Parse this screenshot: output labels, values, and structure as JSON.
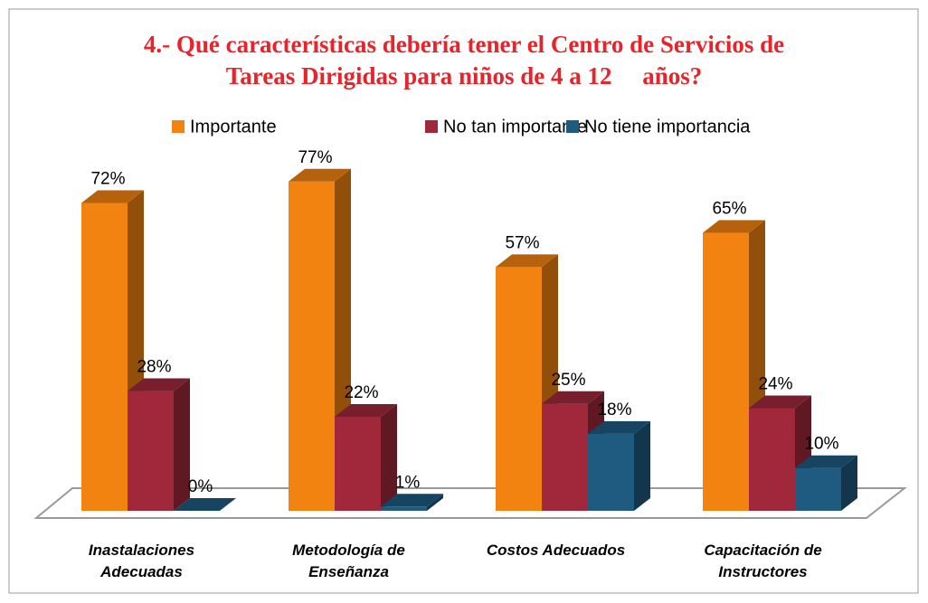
{
  "chart_data": {
    "type": "bar3d",
    "title": [
      "4.- Qué características debería tener el Centro de Servicios de",
      "Tareas Dirigidas para niños de 4 a 12     años?"
    ],
    "categories": [
      "Inastalaciones Adecuadas",
      "Metodología de Enseñanza",
      "Costos Adecuados",
      "Capacitación de Instructores"
    ],
    "series": [
      {
        "name": "Importante",
        "color": "#f28310",
        "values": [
          72,
          77,
          57,
          65
        ],
        "value_labels": [
          "72%",
          "77%",
          "57%",
          "65%"
        ]
      },
      {
        "name": "No tan importante",
        "color": "#a0283a",
        "values": [
          28,
          22,
          25,
          24
        ],
        "value_labels": [
          "28%",
          "22%",
          "25%",
          "24%"
        ]
      },
      {
        "name": "No tiene importancia",
        "color": "#1f5a80",
        "values": [
          0,
          1,
          18,
          10
        ],
        "value_labels": [
          "0%",
          "1%",
          "18%",
          "10%"
        ]
      }
    ],
    "legend": "top"
  }
}
